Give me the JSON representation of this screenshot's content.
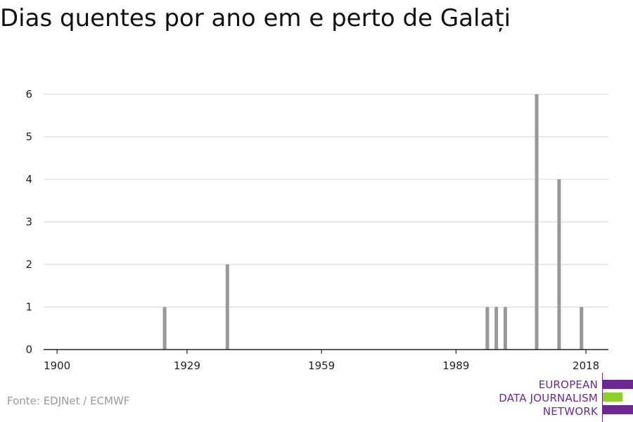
{
  "title": "Dias quentes por ano em e perto de Galați",
  "source": "Fonte: EDJNet / ECMWF",
  "logo": {
    "lines": [
      "EUROPEAN",
      "DATA JOURNALISM",
      "NETWORK"
    ]
  },
  "colors": {
    "bar": "#999999",
    "grid": "#dddddd",
    "axis": "#222222",
    "logo_purple": "#6a2a8f",
    "logo_green": "#8fd12a"
  },
  "chart_data": {
    "type": "bar",
    "title": "Dias quentes por ano em e perto de Galați",
    "xlabel": "",
    "ylabel": "",
    "xlim": [
      1897,
      2023
    ],
    "ylim": [
      0,
      6
    ],
    "yticks": [
      0,
      1,
      2,
      3,
      4,
      5,
      6
    ],
    "xticks": [
      1900,
      1929,
      1959,
      1989,
      2018
    ],
    "grid": true,
    "x": [
      1924,
      1938,
      1996,
      1998,
      2000,
      2007,
      2012,
      2017
    ],
    "values": [
      1,
      2,
      1,
      1,
      1,
      6,
      4,
      1
    ]
  }
}
